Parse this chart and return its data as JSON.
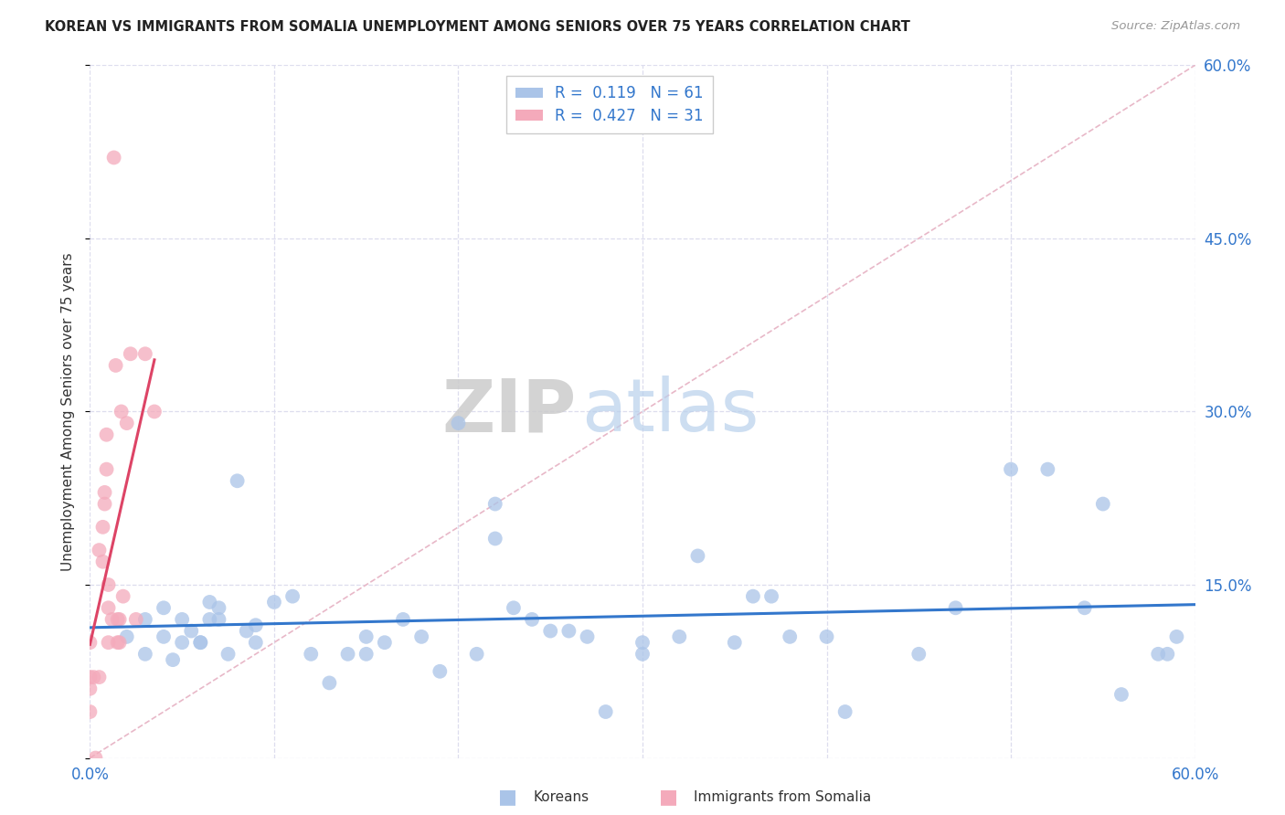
{
  "title": "KOREAN VS IMMIGRANTS FROM SOMALIA UNEMPLOYMENT AMONG SENIORS OVER 75 YEARS CORRELATION CHART",
  "source": "Source: ZipAtlas.com",
  "ylabel": "Unemployment Among Seniors over 75 years",
  "xlim": [
    0.0,
    0.6
  ],
  "ylim": [
    0.0,
    0.6
  ],
  "grid_color": "#ddddee",
  "background_color": "#ffffff",
  "watermark_zip": "ZIP",
  "watermark_atlas": "atlas",
  "korean_color": "#aac4e8",
  "somalia_color": "#f4aabb",
  "korean_line_color": "#3377cc",
  "somalia_line_color": "#dd4466",
  "diagonal_line_color": "#e8b8c8",
  "R_korean": "0.119",
  "N_korean": "61",
  "R_somalia": "0.427",
  "N_somalia": "31",
  "korean_scatter_x": [
    0.02,
    0.03,
    0.04,
    0.045,
    0.05,
    0.055,
    0.06,
    0.065,
    0.065,
    0.07,
    0.07,
    0.075,
    0.08,
    0.085,
    0.09,
    0.09,
    0.1,
    0.11,
    0.12,
    0.13,
    0.14,
    0.15,
    0.15,
    0.16,
    0.17,
    0.18,
    0.19,
    0.2,
    0.21,
    0.22,
    0.22,
    0.23,
    0.24,
    0.25,
    0.26,
    0.27,
    0.28,
    0.3,
    0.3,
    0.32,
    0.33,
    0.35,
    0.36,
    0.37,
    0.38,
    0.4,
    0.41,
    0.45,
    0.47,
    0.5,
    0.52,
    0.54,
    0.55,
    0.56,
    0.58,
    0.585,
    0.59,
    0.03,
    0.04,
    0.05,
    0.06
  ],
  "korean_scatter_y": [
    0.105,
    0.09,
    0.105,
    0.085,
    0.1,
    0.11,
    0.1,
    0.135,
    0.12,
    0.13,
    0.12,
    0.09,
    0.24,
    0.11,
    0.1,
    0.115,
    0.135,
    0.14,
    0.09,
    0.065,
    0.09,
    0.09,
    0.105,
    0.1,
    0.12,
    0.105,
    0.075,
    0.29,
    0.09,
    0.22,
    0.19,
    0.13,
    0.12,
    0.11,
    0.11,
    0.105,
    0.04,
    0.1,
    0.09,
    0.105,
    0.175,
    0.1,
    0.14,
    0.14,
    0.105,
    0.105,
    0.04,
    0.09,
    0.13,
    0.25,
    0.25,
    0.13,
    0.22,
    0.055,
    0.09,
    0.09,
    0.105,
    0.12,
    0.13,
    0.12,
    0.1
  ],
  "somalia_scatter_x": [
    0.0,
    0.0,
    0.0,
    0.0,
    0.002,
    0.003,
    0.005,
    0.005,
    0.007,
    0.007,
    0.008,
    0.008,
    0.009,
    0.009,
    0.01,
    0.01,
    0.01,
    0.012,
    0.013,
    0.014,
    0.015,
    0.015,
    0.016,
    0.016,
    0.017,
    0.018,
    0.02,
    0.022,
    0.025,
    0.03,
    0.035
  ],
  "somalia_scatter_y": [
    0.04,
    0.06,
    0.07,
    0.1,
    0.07,
    0.0,
    0.07,
    0.18,
    0.17,
    0.2,
    0.22,
    0.23,
    0.25,
    0.28,
    0.1,
    0.13,
    0.15,
    0.12,
    0.52,
    0.34,
    0.1,
    0.12,
    0.1,
    0.12,
    0.3,
    0.14,
    0.29,
    0.35,
    0.12,
    0.35,
    0.3
  ]
}
